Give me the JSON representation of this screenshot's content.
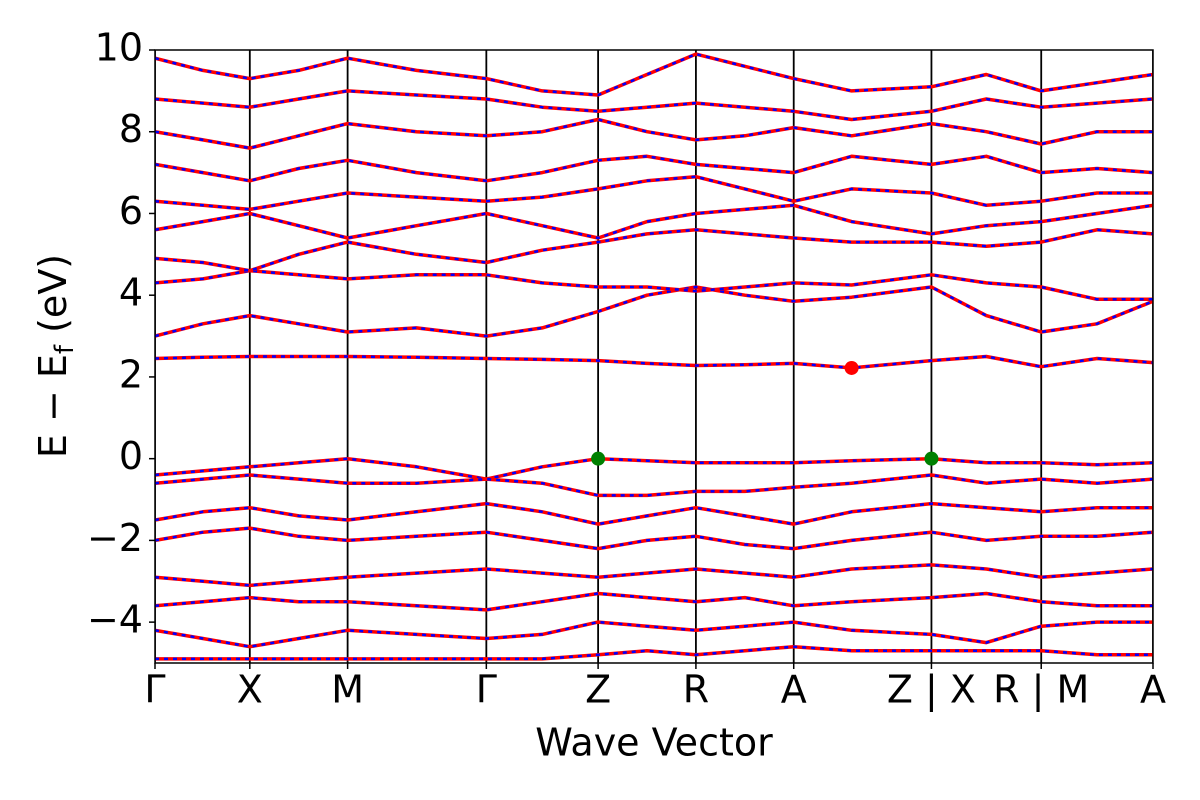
{
  "chart_data": {
    "type": "line",
    "xlabel": "Wave Vector",
    "ylabel": [
      "E − E",
      "f",
      " (eV)"
    ],
    "xlim": [
      0,
      1
    ],
    "ylim": [
      -5,
      10
    ],
    "xticks": [
      {
        "value": 0,
        "label": "Γ"
      },
      {
        "value": 0.095,
        "label": "X"
      },
      {
        "value": 0.193,
        "label": "M"
      },
      {
        "value": 0.332,
        "label": "Γ"
      },
      {
        "value": 0.444,
        "label": "Z"
      },
      {
        "value": 0.542,
        "label": "R"
      },
      {
        "value": 0.64,
        "label": "A"
      },
      {
        "value": 0.778,
        "label": "Z | X"
      },
      {
        "value": 0.888,
        "label": "R | M"
      },
      {
        "value": 1,
        "label": "A"
      }
    ],
    "yticks": [
      {
        "value": -4,
        "label": "−4"
      },
      {
        "value": -2,
        "label": "−2"
      },
      0,
      2,
      4,
      6,
      8,
      10
    ],
    "grid": true,
    "overlay_color": "#0000ff",
    "x": [
      0,
      0.048,
      0.095,
      0.144,
      0.193,
      0.262,
      0.332,
      0.388,
      0.444,
      0.493,
      0.542,
      0.591,
      0.64,
      0.698,
      0.778,
      0.833,
      0.888,
      0.944,
      1
    ],
    "series": [
      {
        "color": "#ff0000",
        "values": [
          2.45,
          2.48,
          2.5,
          2.5,
          2.5,
          2.48,
          2.45,
          2.43,
          2.4,
          2.33,
          2.28,
          2.3,
          2.33,
          2.22,
          2.4,
          2.5,
          2.25,
          2.45,
          2.35
        ]
      },
      {
        "color": "#ff0000",
        "values": [
          3.0,
          3.3,
          3.5,
          3.3,
          3.1,
          3.2,
          3.0,
          3.2,
          3.6,
          4.0,
          4.2,
          4.0,
          3.85,
          3.95,
          4.2,
          3.5,
          3.1,
          3.3,
          3.85
        ]
      },
      {
        "color": "#ff0000",
        "values": [
          4.3,
          4.4,
          4.6,
          4.5,
          4.4,
          4.5,
          4.5,
          4.3,
          4.2,
          4.2,
          4.1,
          4.2,
          4.3,
          4.25,
          4.5,
          4.3,
          4.2,
          3.9,
          3.9
        ]
      },
      {
        "color": "#ff0000",
        "values": [
          4.9,
          4.8,
          4.6,
          5.0,
          5.3,
          5.0,
          4.8,
          5.1,
          5.3,
          5.5,
          5.6,
          5.5,
          5.4,
          5.3,
          5.3,
          5.2,
          5.3,
          5.6,
          5.5
        ]
      },
      {
        "color": "#ff0000",
        "values": [
          5.6,
          5.8,
          6.0,
          5.7,
          5.4,
          5.7,
          6.0,
          5.7,
          5.4,
          5.8,
          6.0,
          6.1,
          6.2,
          5.8,
          5.5,
          5.7,
          5.8,
          6.0,
          6.2
        ]
      },
      {
        "color": "#ff0000",
        "values": [
          6.3,
          6.2,
          6.1,
          6.3,
          6.5,
          6.4,
          6.3,
          6.4,
          6.6,
          6.8,
          6.9,
          6.6,
          6.3,
          6.6,
          6.5,
          6.2,
          6.3,
          6.5,
          6.5
        ]
      },
      {
        "color": "#ff0000",
        "values": [
          7.2,
          7.0,
          6.8,
          7.1,
          7.3,
          7.0,
          6.8,
          7.0,
          7.3,
          7.4,
          7.2,
          7.1,
          7.0,
          7.4,
          7.2,
          7.4,
          7.0,
          7.1,
          7.0
        ]
      },
      {
        "color": "#ff0000",
        "values": [
          8.0,
          7.8,
          7.6,
          7.9,
          8.2,
          8.0,
          7.9,
          8.0,
          8.3,
          8.0,
          7.8,
          7.9,
          8.1,
          7.9,
          8.2,
          8.0,
          7.7,
          8.0,
          8.0
        ]
      },
      {
        "color": "#ff0000",
        "values": [
          8.8,
          8.7,
          8.6,
          8.8,
          9.0,
          8.9,
          8.8,
          8.6,
          8.5,
          8.6,
          8.7,
          8.6,
          8.5,
          8.3,
          8.5,
          8.8,
          8.6,
          8.7,
          8.8
        ]
      },
      {
        "color": "#ff0000",
        "values": [
          9.8,
          9.5,
          9.3,
          9.5,
          9.8,
          9.5,
          9.3,
          9.0,
          8.9,
          9.4,
          9.9,
          9.6,
          9.3,
          9.0,
          9.1,
          9.4,
          9.0,
          9.2,
          9.4
        ]
      },
      {
        "color": "#ff0000",
        "values": [
          -0.4,
          -0.3,
          -0.2,
          -0.1,
          0.0,
          -0.2,
          -0.5,
          -0.2,
          0.0,
          -0.05,
          -0.1,
          -0.1,
          -0.1,
          -0.05,
          0.0,
          -0.1,
          -0.1,
          -0.15,
          -0.1
        ]
      },
      {
        "color": "#ff0000",
        "values": [
          -0.6,
          -0.5,
          -0.4,
          -0.5,
          -0.6,
          -0.6,
          -0.5,
          -0.6,
          -0.9,
          -0.9,
          -0.8,
          -0.8,
          -0.7,
          -0.6,
          -0.4,
          -0.6,
          -0.5,
          -0.6,
          -0.5
        ]
      },
      {
        "color": "#ff0000",
        "values": [
          -1.5,
          -1.3,
          -1.2,
          -1.4,
          -1.5,
          -1.3,
          -1.1,
          -1.3,
          -1.6,
          -1.4,
          -1.2,
          -1.4,
          -1.6,
          -1.3,
          -1.1,
          -1.2,
          -1.3,
          -1.2,
          -1.2
        ]
      },
      {
        "color": "#ff0000",
        "values": [
          -2.0,
          -1.8,
          -1.7,
          -1.9,
          -2.0,
          -1.9,
          -1.8,
          -2.0,
          -2.2,
          -2.0,
          -1.9,
          -2.1,
          -2.2,
          -2.0,
          -1.8,
          -2.0,
          -1.9,
          -1.9,
          -1.8
        ]
      },
      {
        "color": "#ff0000",
        "values": [
          -2.9,
          -3.0,
          -3.1,
          -3.0,
          -2.9,
          -2.8,
          -2.7,
          -2.8,
          -2.9,
          -2.8,
          -2.7,
          -2.8,
          -2.9,
          -2.7,
          -2.6,
          -2.7,
          -2.9,
          -2.8,
          -2.7
        ]
      },
      {
        "color": "#ff0000",
        "values": [
          -3.6,
          -3.5,
          -3.4,
          -3.5,
          -3.5,
          -3.6,
          -3.7,
          -3.5,
          -3.3,
          -3.4,
          -3.5,
          -3.4,
          -3.6,
          -3.5,
          -3.4,
          -3.3,
          -3.5,
          -3.6,
          -3.6
        ]
      },
      {
        "color": "#ff0000",
        "values": [
          -4.2,
          -4.4,
          -4.6,
          -4.4,
          -4.2,
          -4.3,
          -4.4,
          -4.3,
          -4.0,
          -4.1,
          -4.2,
          -4.1,
          -4.0,
          -4.2,
          -4.3,
          -4.5,
          -4.1,
          -4.0,
          -4.0
        ]
      },
      {
        "color": "#ff0000",
        "values": [
          -4.9,
          -4.9,
          -4.9,
          -4.9,
          -4.9,
          -4.9,
          -4.9,
          -4.9,
          -4.8,
          -4.7,
          -4.8,
          -4.7,
          -4.6,
          -4.7,
          -4.7,
          -4.7,
          -4.7,
          -4.8,
          -4.8
        ]
      }
    ],
    "points": [
      {
        "x": 0.444,
        "y": 0,
        "color": "#008000"
      },
      {
        "x": 0.778,
        "y": 0,
        "color": "#008000"
      },
      {
        "x": 0.698,
        "y": 2.22,
        "color": "#ff0000"
      }
    ]
  }
}
